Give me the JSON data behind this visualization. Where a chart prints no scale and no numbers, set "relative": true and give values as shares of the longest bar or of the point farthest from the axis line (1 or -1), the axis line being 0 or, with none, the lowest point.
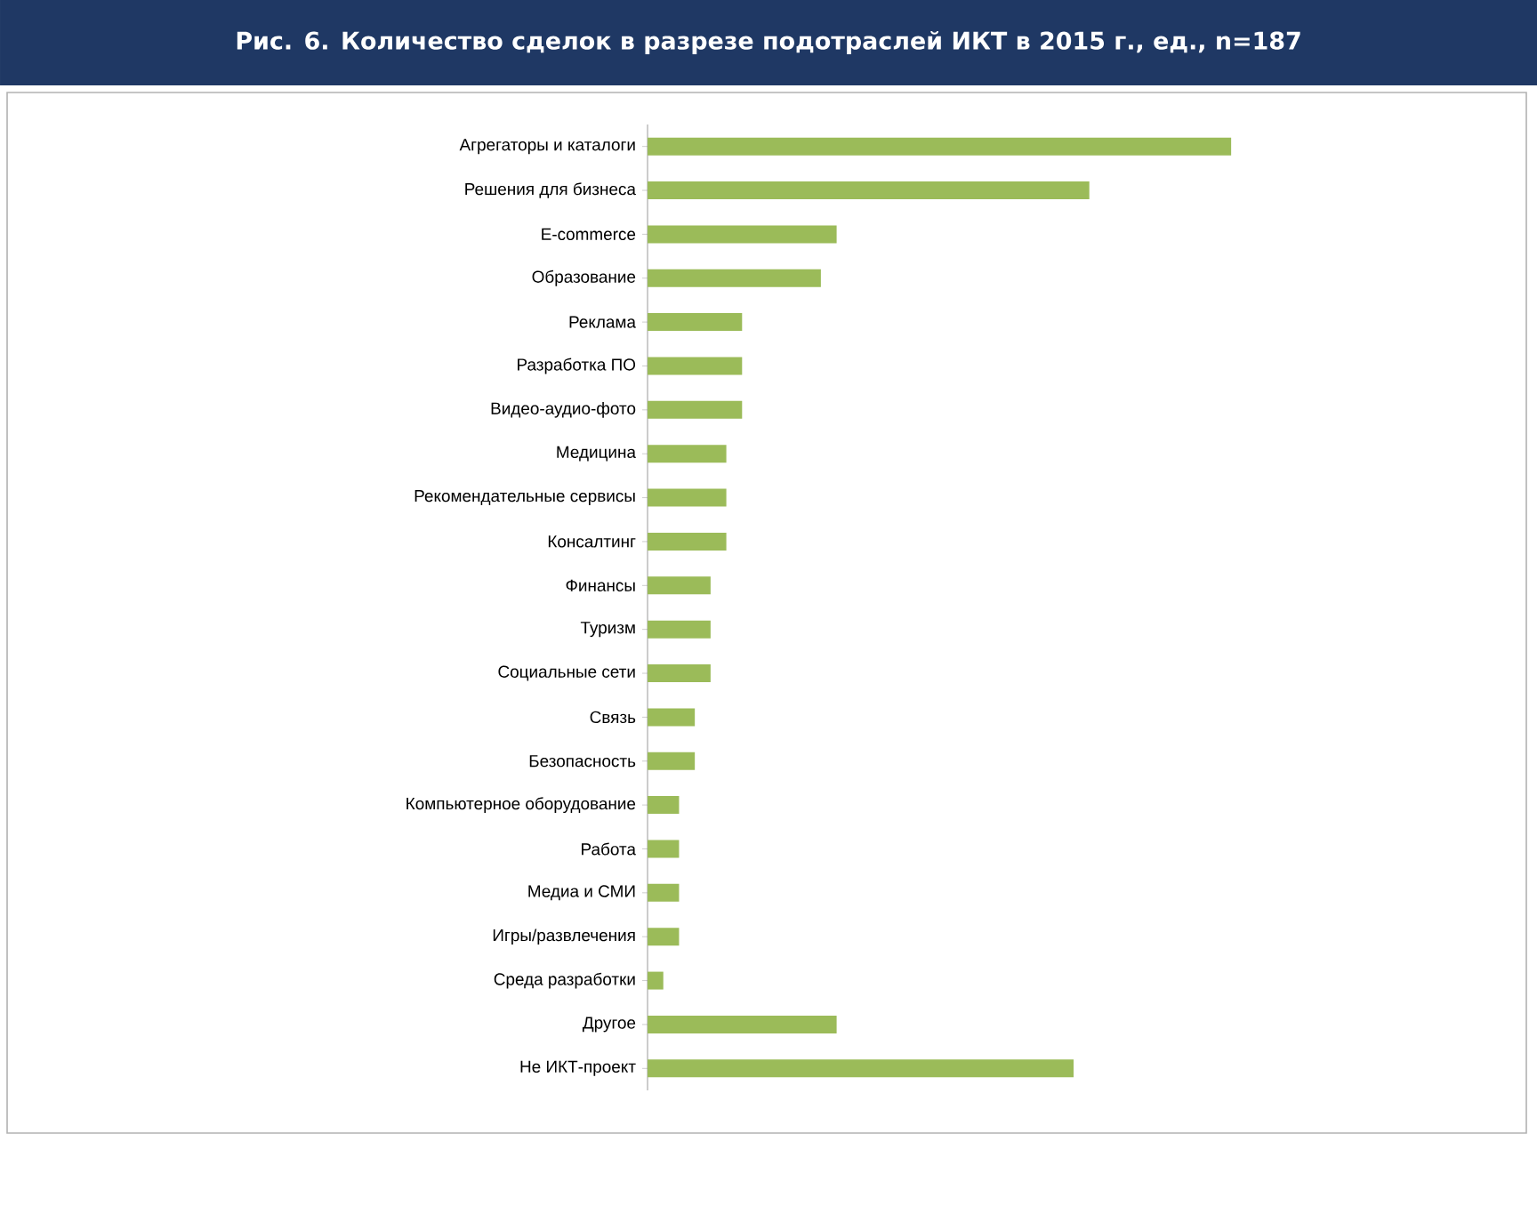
{
  "chart_data": {
    "type": "bar",
    "orientation": "horizontal",
    "relative": true,
    "title": "Рис. 6. Количество сделок в разрезе подотраслей ИКТ в 2015 г., ед., n=187",
    "categories": [
      "Агрегаторы и каталоги",
      "Решения для бизнеса",
      "E-commerce",
      "Образование",
      "Реклама",
      "Разработка ПО",
      "Видео-аудио-фото",
      "Медицина",
      "Рекомендательные сервисы",
      "Консалтинг",
      "Финансы",
      "Туризм",
      "Социальные сети",
      "Связь",
      "Безопасность",
      "Компьютерное оборудование",
      "Работа",
      "Медиа и СМИ",
      "Игры/развлечения",
      "Среда разработки",
      "Другое",
      "Не ИКТ-проект"
    ],
    "values": [
      1,
      0.757,
      0.324,
      0.297,
      0.162,
      0.162,
      0.162,
      0.135,
      0.135,
      0.135,
      0.108,
      0.108,
      0.108,
      0.081,
      0.081,
      0.054,
      0.054,
      0.054,
      0.054,
      0.027,
      0.324,
      0.73
    ],
    "color": "#9bbb59"
  }
}
